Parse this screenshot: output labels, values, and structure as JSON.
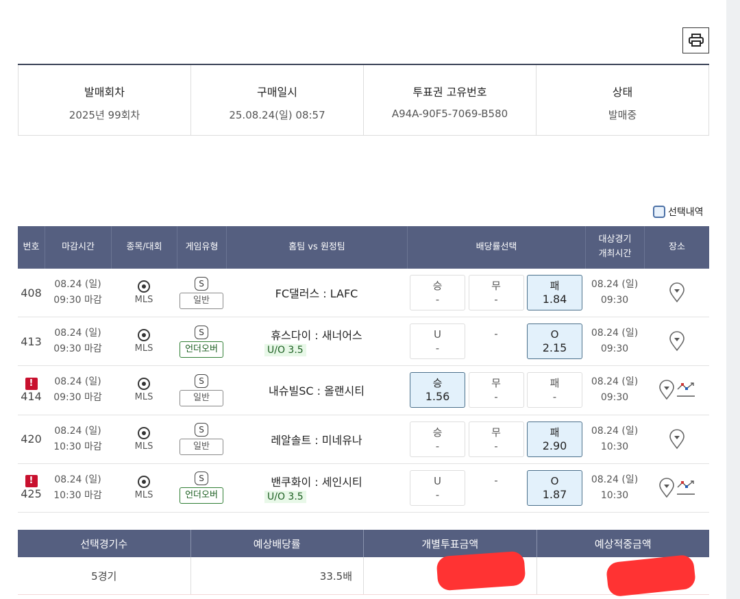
{
  "info": {
    "headers": [
      "발매회차",
      "구매일시",
      "투표권 고유번호",
      "상태"
    ],
    "values": [
      "2025년 99회차",
      "25.08.24(일) 08:57",
      "A94A-90F5-7069-B580",
      "발매중"
    ]
  },
  "select_label": "선택내역",
  "table": {
    "headers": [
      "번호",
      "마감시간",
      "종목/대회",
      "게임유형",
      "홈팀 vs 원정팀",
      "배당률선택",
      "대상경기\n개최시간",
      "장소"
    ],
    "rows": [
      {
        "num": "408",
        "warn": false,
        "date": "08.24 (일)",
        "close": "09:30 마감",
        "league": "MLS",
        "type": "일반",
        "uo": false,
        "teams": "FC댈러스 : LAFC",
        "line": "",
        "odds": [
          {
            "l": "승",
            "v": "-",
            "on": false
          },
          {
            "l": "무",
            "v": "-",
            "on": false
          },
          {
            "l": "패",
            "v": "1.84",
            "on": true
          }
        ],
        "kdate": "08.24 (일)",
        "ktime": "09:30",
        "chart": false
      },
      {
        "num": "413",
        "warn": false,
        "date": "08.24 (일)",
        "close": "09:30 마감",
        "league": "MLS",
        "type": "언더오버",
        "uo": true,
        "teams": "휴스다이 : 새너어스",
        "line": "U/O 3.5",
        "odds": [
          {
            "l": "U",
            "v": "-",
            "on": false
          },
          {
            "l": "",
            "v": "-",
            "on": false,
            "plain": true
          },
          {
            "l": "O",
            "v": "2.15",
            "on": true
          }
        ],
        "kdate": "08.24 (일)",
        "ktime": "09:30",
        "chart": false
      },
      {
        "num": "414",
        "warn": true,
        "date": "08.24 (일)",
        "close": "09:30 마감",
        "league": "MLS",
        "type": "일반",
        "uo": false,
        "teams": "내슈빌SC : 올랜시티",
        "line": "",
        "odds": [
          {
            "l": "승",
            "v": "1.56",
            "on": true
          },
          {
            "l": "무",
            "v": "-",
            "on": false
          },
          {
            "l": "패",
            "v": "-",
            "on": false
          }
        ],
        "kdate": "08.24 (일)",
        "ktime": "09:30",
        "chart": true
      },
      {
        "num": "420",
        "warn": false,
        "date": "08.24 (일)",
        "close": "10:30 마감",
        "league": "MLS",
        "type": "일반",
        "uo": false,
        "teams": "레알솔트 : 미네유나",
        "line": "",
        "odds": [
          {
            "l": "승",
            "v": "-",
            "on": false
          },
          {
            "l": "무",
            "v": "-",
            "on": false
          },
          {
            "l": "패",
            "v": "2.90",
            "on": true
          }
        ],
        "kdate": "08.24 (일)",
        "ktime": "10:30",
        "chart": false
      },
      {
        "num": "425",
        "warn": true,
        "date": "08.24 (일)",
        "close": "10:30 마감",
        "league": "MLS",
        "type": "언더오버",
        "uo": true,
        "teams": "밴쿠화이 : 세인시티",
        "line": "U/O 3.5",
        "odds": [
          {
            "l": "U",
            "v": "-",
            "on": false
          },
          {
            "l": "",
            "v": "-",
            "on": false,
            "plain": true
          },
          {
            "l": "O",
            "v": "1.87",
            "on": true
          }
        ],
        "kdate": "08.24 (일)",
        "ktime": "10:30",
        "chart": true
      }
    ]
  },
  "summary": {
    "headers": [
      "선택경기수",
      "예상배당률",
      "개별투표금액",
      "예상적중금액"
    ],
    "values": [
      "5경기",
      "33.5배",
      "",
      ""
    ]
  },
  "colors": {
    "header_bg": "#555f80",
    "selected_bg": "#e3f1fb",
    "warn": "#c8102e",
    "uo": "#1b5e20",
    "redaction": "#ff3333"
  }
}
